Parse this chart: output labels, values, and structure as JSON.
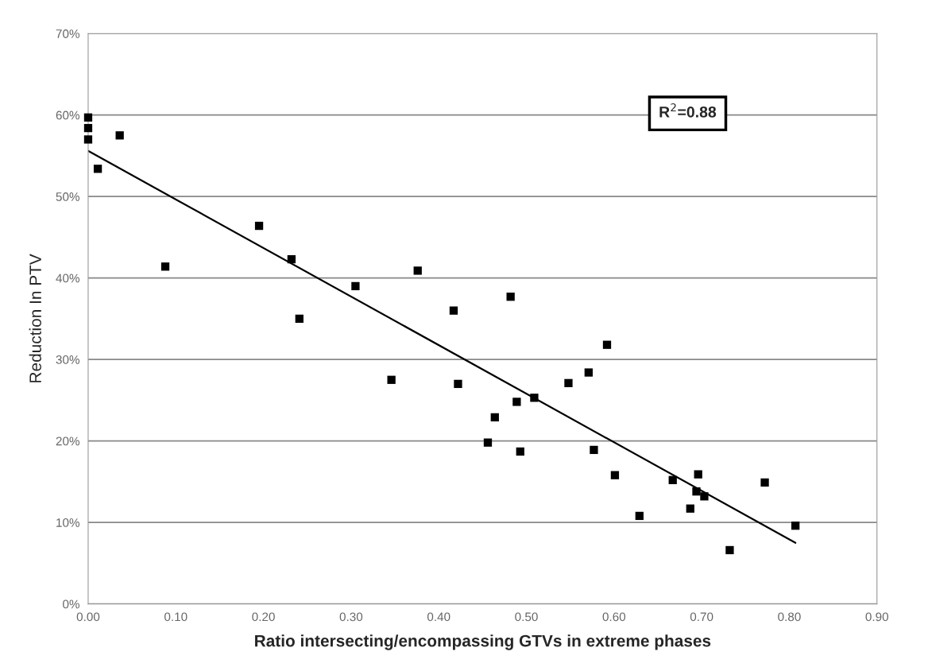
{
  "chart_data": {
    "type": "scatter",
    "xlabel": "Ratio intersecting/encompassing GTVs in extreme phases",
    "ylabel": "Reduction In PTV",
    "annotations": [
      "R$^{2}$=0.88"
    ],
    "xlim": [
      0,
      0.9
    ],
    "ylim": [
      0,
      70
    ],
    "xticks": [
      {
        "value": 0,
        "label": "0.00"
      },
      {
        "value": 0.1,
        "label": "0.10"
      },
      {
        "value": 0.2,
        "label": "0.20"
      },
      {
        "value": 0.3,
        "label": "0.30"
      },
      {
        "value": 0.4,
        "label": "0.40"
      },
      {
        "value": 0.5,
        "label": "0.50"
      },
      {
        "value": 0.6,
        "label": "0.60"
      },
      {
        "value": 0.7,
        "label": "0.70"
      },
      {
        "value": 0.8,
        "label": "0.80"
      },
      {
        "value": 0.9,
        "label": "0.90"
      }
    ],
    "yticks": [
      {
        "value": 0,
        "label": "0%"
      },
      {
        "value": 10,
        "label": "10%"
      },
      {
        "value": 20,
        "label": "20%"
      },
      {
        "value": 30,
        "label": "30%"
      },
      {
        "value": 40,
        "label": "40%"
      },
      {
        "value": 50,
        "label": "50%"
      },
      {
        "value": 60,
        "label": "60%"
      },
      {
        "value": 70,
        "label": "70%"
      }
    ],
    "grid": "y",
    "series": [
      {
        "marker": "square",
        "color": "#000000",
        "x": [
          0,
          0,
          0,
          0.011,
          0.036,
          0.088,
          0.195,
          0.232,
          0.241,
          0.305,
          0.376,
          0.346,
          0.417,
          0.422,
          0.482,
          0.489,
          0.509,
          0.464,
          0.456,
          0.493,
          0.548,
          0.571,
          0.592,
          0.577,
          0.601,
          0.629,
          0.667,
          0.696,
          0.694,
          0.703,
          0.687,
          0.732,
          0.772,
          0.807
        ],
        "values": [
          59.7,
          58.4,
          57.0,
          53.4,
          57.5,
          41.4,
          46.4,
          42.3,
          35.0,
          39.0,
          40.9,
          27.5,
          36.0,
          27.0,
          37.7,
          24.8,
          25.3,
          22.9,
          19.8,
          18.7,
          27.1,
          28.4,
          31.8,
          18.9,
          15.8,
          10.8,
          15.2,
          15.9,
          13.8,
          13.2,
          11.7,
          6.6,
          14.9,
          9.6
        ]
      },
      {
        "type": "line",
        "color": "#000000",
        "x": [
          0,
          0.807
        ],
        "values": [
          55.6,
          7.5
        ]
      }
    ]
  }
}
